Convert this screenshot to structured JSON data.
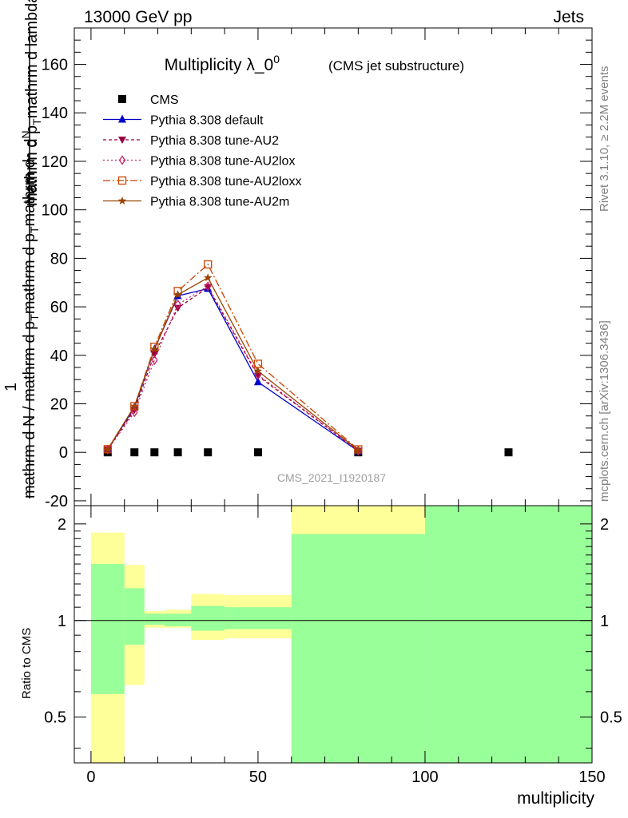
{
  "header": {
    "left": "13000 GeV pp",
    "right": "Jets"
  },
  "side_labels": {
    "rivet": "Rivet 3.1.10, ≥ 2.2M events",
    "mcplots": "mcplots.cern.ch [arXiv:1306.3436]"
  },
  "watermark": "CMS_2021_I1920187",
  "chart_data": [
    {
      "type": "line",
      "title": "Multiplicity λ_0",
      "title_sup": "0",
      "subtitle": "(CMS jet substructure)",
      "ylabel": {
        "num": "mathrm d",
        "num_tail": "N",
        "den": "mathrm d p",
        "den_sub": "T",
        "den_tail": "mathrm d lambda",
        "one": "1",
        "lower": "mathrm d N / mathrm d p",
        "lower_sub": "T",
        "lower_tail": "mathrm d p",
        "lower_sub2": "T",
        "lower_tail2": "mathrm d"
      },
      "xlim": [
        -5,
        150
      ],
      "ylim": [
        -22,
        175
      ],
      "yticks": [
        -20,
        0,
        20,
        40,
        60,
        80,
        100,
        120,
        140,
        160
      ],
      "series": [
        {
          "name": "CMS",
          "color": "#000000",
          "marker": "square",
          "x": [
            5,
            13,
            19,
            26,
            35,
            50,
            80,
            125
          ],
          "y": [
            0,
            0,
            0,
            0,
            0,
            0,
            0,
            0
          ]
        },
        {
          "name": "Pythia 8.308 default",
          "color": "#0000cc",
          "marker": "triangle-up",
          "dash": "",
          "x": [
            5,
            13,
            19,
            26,
            35,
            50,
            80
          ],
          "y": [
            1.2,
            18.5,
            42.5,
            64.5,
            67.5,
            29,
            0.5
          ]
        },
        {
          "name": "Pythia 8.308 tune-AU2",
          "color": "#990044",
          "marker": "triangle-down",
          "dash": "4,3",
          "x": [
            5,
            13,
            19,
            26,
            35,
            50,
            80
          ],
          "y": [
            1.1,
            17.5,
            40.5,
            59.5,
            68,
            31.5,
            0.6
          ]
        },
        {
          "name": "Pythia 8.308 tune-AU2lox",
          "color": "#cc2266",
          "marker": "diamond-open",
          "dash": "2,3",
          "x": [
            5,
            13,
            19,
            26,
            35,
            50,
            80
          ],
          "y": [
            1.1,
            16.5,
            38,
            61,
            68.5,
            32,
            0.7
          ]
        },
        {
          "name": "Pythia 8.308 tune-AU2loxx",
          "color": "#cc4400",
          "marker": "square-open",
          "dash": "9,3,2,3",
          "x": [
            5,
            13,
            19,
            26,
            35,
            50,
            80
          ],
          "y": [
            1.3,
            19,
            43.5,
            66.5,
            77.5,
            36.5,
            1.2
          ]
        },
        {
          "name": "Pythia 8.308 tune-AU2m",
          "color": "#994400",
          "marker": "star",
          "dash": "",
          "x": [
            5,
            13,
            19,
            26,
            35,
            50,
            80
          ],
          "y": [
            1.2,
            19,
            42.5,
            65,
            72,
            33.5,
            0.9
          ]
        }
      ]
    },
    {
      "type": "area",
      "xlabel": "multiplicity",
      "ylabel": "Ratio to CMS",
      "xlim": [
        -5,
        150
      ],
      "ylim": [
        0.36,
        2.28
      ],
      "xticks": [
        0,
        50,
        100,
        150
      ],
      "yticks": [
        0.5,
        1,
        2
      ],
      "reference_line": 1,
      "bands": [
        {
          "x0": 0,
          "x1": 10,
          "yellow": [
            0.3,
            1.88
          ],
          "green": [
            0.59,
            1.5
          ]
        },
        {
          "x0": 10,
          "x1": 16,
          "yellow": [
            0.63,
            1.49
          ],
          "green": [
            0.84,
            1.26
          ]
        },
        {
          "x0": 16,
          "x1": 22,
          "yellow": [
            0.95,
            1.07
          ],
          "green": [
            0.97,
            1.05
          ]
        },
        {
          "x0": 22,
          "x1": 30,
          "yellow": [
            0.95,
            1.08
          ],
          "green": [
            0.96,
            1.05
          ]
        },
        {
          "x0": 30,
          "x1": 40,
          "yellow": [
            0.87,
            1.21
          ],
          "green": [
            0.93,
            1.11
          ]
        },
        {
          "x0": 40,
          "x1": 60,
          "yellow": [
            0.88,
            1.2
          ],
          "green": [
            0.94,
            1.1
          ]
        },
        {
          "x0": 60,
          "x1": 100,
          "yellow": [
            0.3,
            3
          ],
          "green": [
            0.3,
            1.86
          ]
        },
        {
          "x0": 100,
          "x1": 150,
          "yellow": [
            0.3,
            3
          ],
          "green": [
            0.3,
            3
          ]
        }
      ],
      "colors": {
        "yellow": "#ffff99",
        "green": "#99ff99"
      }
    }
  ]
}
